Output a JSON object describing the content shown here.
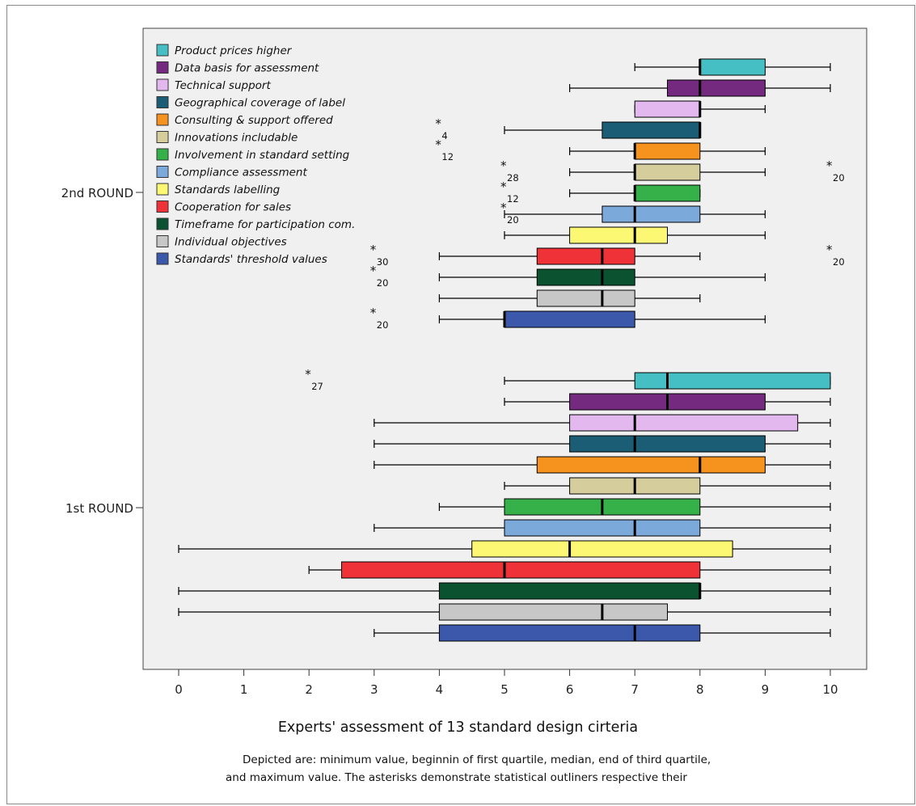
{
  "chart_data": {
    "type": "boxplot",
    "orientation": "horizontal",
    "title": "",
    "xlabel": "Experts' assessment of 13 standard design cirteria",
    "ylabel": "",
    "xlim": [
      0,
      10
    ],
    "x_ticks": [
      "0",
      "1",
      "2",
      "3",
      "4",
      "5",
      "6",
      "7",
      "8",
      "9",
      "10"
    ],
    "groups": [
      "2nd ROUND",
      "1st ROUND"
    ],
    "legend_position": "top-left",
    "grid": false,
    "series": [
      {
        "name": "Product prices higher",
        "color": "#45bfc4",
        "boxes": [
          {
            "group": "2nd ROUND",
            "min": 7,
            "q1": 8,
            "median": 8,
            "q3": 9,
            "max": 10
          },
          {
            "group": "1st ROUND",
            "min": 5,
            "q1": 7,
            "median": 7.5,
            "q3": 10,
            "max": 10
          }
        ]
      },
      {
        "name": "Data basis for assessment",
        "color": "#742a7e",
        "boxes": [
          {
            "group": "2nd ROUND",
            "min": 6,
            "q1": 7.5,
            "median": 8,
            "q3": 9,
            "max": 10
          },
          {
            "group": "1st ROUND",
            "min": 5,
            "q1": 6,
            "median": 7.5,
            "q3": 9,
            "max": 10
          }
        ]
      },
      {
        "name": "Technical support",
        "color": "#e2b8ef",
        "boxes": [
          {
            "group": "2nd ROUND",
            "min": 7,
            "q1": 7,
            "median": 8,
            "q3": 8,
            "max": 9
          },
          {
            "group": "1st ROUND",
            "min": 3,
            "q1": 6,
            "median": 7,
            "q3": 9.5,
            "max": 10
          }
        ]
      },
      {
        "name": "Geographical coverage of label",
        "color": "#1b5d74",
        "boxes": [
          {
            "group": "2nd ROUND",
            "min": 5,
            "q1": 6.5,
            "median": 8,
            "q3": 8,
            "max": 8
          },
          {
            "group": "1st ROUND",
            "min": 3,
            "q1": 6,
            "median": 7,
            "q3": 9,
            "max": 10
          }
        ]
      },
      {
        "name": "Consulting & support offered",
        "color": "#f6921e",
        "boxes": [
          {
            "group": "2nd ROUND",
            "min": 6,
            "q1": 7,
            "median": 7,
            "q3": 8,
            "max": 9
          },
          {
            "group": "1st ROUND",
            "min": 3,
            "q1": 5.5,
            "median": 8,
            "q3": 9,
            "max": 10
          }
        ]
      },
      {
        "name": "Innovations includable",
        "color": "#d6cd9c",
        "boxes": [
          {
            "group": "2nd ROUND",
            "min": 6,
            "q1": 7,
            "median": 7,
            "q3": 8,
            "max": 9
          },
          {
            "group": "1st ROUND",
            "min": 5,
            "q1": 6,
            "median": 7,
            "q3": 8,
            "max": 10
          }
        ]
      },
      {
        "name": "Involvement in standard setting",
        "color": "#36b14a",
        "boxes": [
          {
            "group": "2nd ROUND",
            "min": 6,
            "q1": 7,
            "median": 7,
            "q3": 8,
            "max": 8
          },
          {
            "group": "1st ROUND",
            "min": 4,
            "q1": 5,
            "median": 6.5,
            "q3": 8,
            "max": 10
          }
        ]
      },
      {
        "name": "Compliance assessment",
        "color": "#7ba9d9",
        "boxes": [
          {
            "group": "2nd ROUND",
            "min": 5,
            "q1": 6.5,
            "median": 7,
            "q3": 8,
            "max": 9
          },
          {
            "group": "1st ROUND",
            "min": 3,
            "q1": 5,
            "median": 7,
            "q3": 8,
            "max": 10
          }
        ]
      },
      {
        "name": "Standards labelling",
        "color": "#fcf874",
        "boxes": [
          {
            "group": "2nd ROUND",
            "min": 5,
            "q1": 6,
            "median": 7,
            "q3": 7.5,
            "max": 9
          },
          {
            "group": "1st ROUND",
            "min": 0,
            "q1": 4.5,
            "median": 6,
            "q3": 8.5,
            "max": 10
          }
        ]
      },
      {
        "name": "Cooperation for sales",
        "color": "#ee3238",
        "boxes": [
          {
            "group": "2nd ROUND",
            "min": 4,
            "q1": 5.5,
            "median": 6.5,
            "q3": 7,
            "max": 8
          },
          {
            "group": "1st ROUND",
            "min": 2,
            "q1": 2.5,
            "median": 5,
            "q3": 8,
            "max": 10
          }
        ]
      },
      {
        "name": "Timeframe for participation com.",
        "color": "#0b5330",
        "boxes": [
          {
            "group": "2nd ROUND",
            "min": 4,
            "q1": 5.5,
            "median": 6.5,
            "q3": 7,
            "max": 9
          },
          {
            "group": "1st ROUND",
            "min": 0,
            "q1": 4,
            "median": 8,
            "q3": 8,
            "max": 10
          }
        ]
      },
      {
        "name": "Individual objectives",
        "color": "#c7c7c7",
        "boxes": [
          {
            "group": "2nd ROUND",
            "min": 4,
            "q1": 5.5,
            "median": 6.5,
            "q3": 7,
            "max": 8
          },
          {
            "group": "1st ROUND",
            "min": 0,
            "q1": 4,
            "median": 6.5,
            "q3": 7.5,
            "max": 10
          }
        ]
      },
      {
        "name": "Standards' threshold values",
        "color": "#3b58ab",
        "boxes": [
          {
            "group": "2nd ROUND",
            "min": 4,
            "q1": 5,
            "median": 5,
            "q3": 7,
            "max": 9
          },
          {
            "group": "1st ROUND",
            "min": 3,
            "q1": 4,
            "median": 7,
            "q3": 8,
            "max": 10
          }
        ]
      }
    ],
    "outliers": [
      {
        "series_index": 3,
        "group": "2nd ROUND",
        "value": 4,
        "id": "4"
      },
      {
        "series_index": 4,
        "group": "2nd ROUND",
        "value": 4,
        "id": "12"
      },
      {
        "series_index": 5,
        "group": "2nd ROUND",
        "value": 5,
        "id": "28"
      },
      {
        "series_index": 5,
        "group": "2nd ROUND",
        "value": 10,
        "id": "20"
      },
      {
        "series_index": 6,
        "group": "2nd ROUND",
        "value": 5,
        "id": "12"
      },
      {
        "series_index": 7,
        "group": "2nd ROUND",
        "value": 5,
        "id": "20"
      },
      {
        "series_index": 9,
        "group": "2nd ROUND",
        "value": 3,
        "id": "30"
      },
      {
        "series_index": 9,
        "group": "2nd ROUND",
        "value": 10,
        "id": "20"
      },
      {
        "series_index": 10,
        "group": "2nd ROUND",
        "value": 3,
        "id": "20"
      },
      {
        "series_index": 12,
        "group": "2nd ROUND",
        "value": 3,
        "id": "20"
      },
      {
        "series_index": 0,
        "group": "1st ROUND",
        "value": 2,
        "id": "27"
      }
    ],
    "captions": [
      "Depicted are: minimum value, beginnin of first quartile, median, end of third quartile,",
      "and maximum value. The asterisks demonstrate statistical outliners respective their"
    ]
  }
}
